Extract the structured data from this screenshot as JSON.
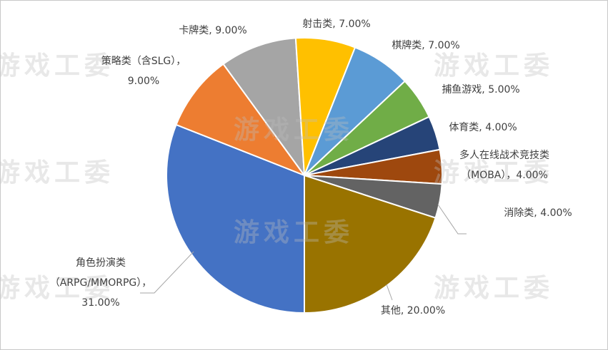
{
  "chart_data": {
    "type": "pie",
    "watermark": "游戏工委",
    "values": [
      31,
      9,
      9,
      7,
      7,
      5,
      4,
      4,
      4,
      20
    ],
    "value_labels": [
      "角色扮演类\n（ARPG/MMORPG），\n31.00%",
      "策略类（含SLG），\n9.00%",
      "卡牌类, 9.00%",
      "射击类, 7.00%",
      "棋牌类, 7.00%",
      "捕鱼游戏, 5.00%",
      "体育类, 4.00%",
      "多人在线战术竞技类\n（MOBA），4.00%",
      "消除类, 4.00%",
      "其他, 20.00%"
    ],
    "colors": [
      "#4472c4",
      "#ed7d31",
      "#a5a5a5",
      "#ffc000",
      "#5b9bd5",
      "#70ad47",
      "#264478",
      "#9e480e",
      "#636363",
      "#997300"
    ]
  }
}
